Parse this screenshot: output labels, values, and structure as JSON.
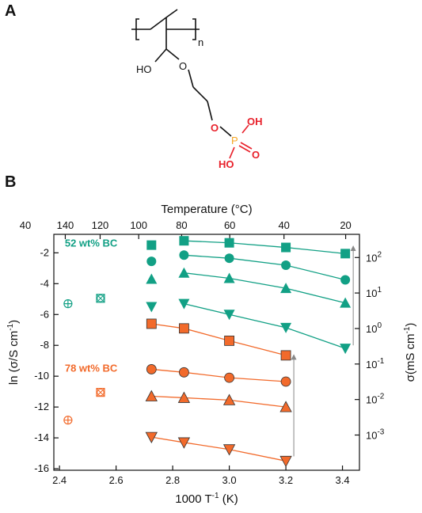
{
  "panels": {
    "a_label": "A",
    "b_label": "B"
  },
  "molecule": {
    "subscript": "n",
    "hydroxyl": "HO",
    "ether_oxygen": "O",
    "phosphate_oxygen": "O",
    "phosphorus": "P",
    "oh_top": "OH",
    "ho_bottom": "HO",
    "oxo": "O",
    "colors": {
      "bonds": "#111111",
      "acid": "#e8202a",
      "phosphorus": "#f5a623"
    }
  },
  "chart_data": {
    "type": "scatter",
    "xlabel": "1000 T",
    "xlabel_sup": "-1",
    "xlabel_unit": " (K)",
    "ylabel": "ln (σ/S cm",
    "ylabel_sup": "-1",
    "ylabel_end": ")",
    "y2label": "σ(mS cm",
    "y2label_sup": "-1",
    "y2label_end": ")",
    "toplabel": "Temperature (°C)",
    "xlim": [
      2.38,
      3.46
    ],
    "ylim": [
      -16.1,
      -0.8
    ],
    "xticks": [
      2.4,
      2.6,
      2.8,
      3.0,
      3.2,
      3.4
    ],
    "xtick_labels": [
      "2.4",
      "2.6",
      "2.8",
      "3.0",
      "3.2",
      "3.4"
    ],
    "yticks": [
      -16,
      -14,
      -12,
      -10,
      -8,
      -6,
      -4,
      -2
    ],
    "ytick_labels": [
      "-16",
      "-14",
      "-12",
      "-10",
      "-8",
      "-6",
      "-4",
      "-2"
    ],
    "top_ticks_celsius": [
      140,
      120,
      100,
      80,
      60,
      40,
      20
    ],
    "top_tick_labels": [
      "140",
      "120",
      "100",
      "80",
      "60",
      "40",
      "20"
    ],
    "top_edge_label": "40",
    "right_ticks_ln": [
      4.605,
      2.303,
      0,
      -2.303,
      -4.605,
      -6.908
    ],
    "right_tick_bases": [
      "10",
      "10",
      "10",
      "10",
      "10",
      "10"
    ],
    "right_tick_exps": [
      "2",
      "1",
      "0",
      "-1",
      "-2",
      "-3"
    ],
    "groups": [
      {
        "label": "52 wt% BC",
        "color": "#12a085",
        "label_pos": [
          2.43,
          -1.6
        ],
        "series": [
          {
            "marker": "square",
            "x": [
              2.725,
              2.84,
              3.0,
              3.2,
              3.41
            ],
            "y": [
              -1.5,
              -1.22,
              -1.35,
              -1.65,
              -2.05
            ],
            "line_from": 1
          },
          {
            "marker": "circle",
            "x": [
              2.725,
              2.84,
              3.0,
              3.2,
              3.41
            ],
            "y": [
              -2.55,
              -2.15,
              -2.35,
              -2.8,
              -3.75
            ],
            "line_from": 1
          },
          {
            "marker": "triangle-up",
            "x": [
              2.725,
              2.84,
              3.0,
              3.2,
              3.41
            ],
            "y": [
              -3.7,
              -3.3,
              -3.65,
              -4.3,
              -5.25
            ],
            "line_from": 1
          },
          {
            "marker": "triangle-down",
            "x": [
              2.725,
              2.84,
              3.0,
              3.2,
              3.41
            ],
            "y": [
              -5.5,
              -5.3,
              -6.0,
              -6.85,
              -8.2
            ],
            "line_from": 1
          },
          {
            "marker": "circle-plus",
            "x": [
              2.43
            ],
            "y": [
              -5.3
            ],
            "line_from": null
          },
          {
            "marker": "square-x",
            "x": [
              2.545
            ],
            "y": [
              -4.95
            ],
            "line_from": null
          }
        ]
      },
      {
        "label": "78 wt% BC",
        "color": "#f26a2b",
        "label_pos": [
          2.43,
          -9.7
        ],
        "series": [
          {
            "marker": "square",
            "x": [
              2.725,
              2.84,
              3.0,
              3.2
            ],
            "y": [
              -6.6,
              -6.9,
              -7.7,
              -8.65
            ],
            "line_from": 0
          },
          {
            "marker": "circle",
            "x": [
              2.725,
              2.84,
              3.0,
              3.2
            ],
            "y": [
              -9.55,
              -9.75,
              -10.1,
              -10.35
            ],
            "line_from": 0
          },
          {
            "marker": "triangle-up",
            "x": [
              2.725,
              2.84,
              3.0,
              3.2
            ],
            "y": [
              -11.3,
              -11.4,
              -11.55,
              -12.0
            ],
            "line_from": 0
          },
          {
            "marker": "triangle-down",
            "x": [
              2.725,
              2.84,
              3.0,
              3.2
            ],
            "y": [
              -13.95,
              -14.3,
              -14.75,
              -15.5
            ],
            "line_from": 0
          },
          {
            "marker": "circle-plus",
            "x": [
              2.43
            ],
            "y": [
              -12.85
            ],
            "line_from": null
          },
          {
            "marker": "square-x",
            "x": [
              2.545
            ],
            "y": [
              -11.05
            ],
            "line_from": null
          }
        ]
      }
    ],
    "arrows": [
      {
        "x": 3.41,
        "y_from": -8.0,
        "y_to": -1.7
      },
      {
        "x": 3.2,
        "y_from": -15.2,
        "y_to": -8.75
      }
    ],
    "grid": false,
    "legend": "none"
  }
}
